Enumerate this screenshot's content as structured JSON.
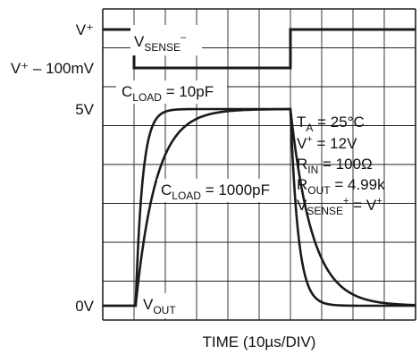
{
  "chart_data": {
    "type": "line",
    "xlabel": "TIME (10µs/DIV)",
    "x_divisions": 10,
    "y_levels": [
      {
        "label": "V⁺",
        "name": "vplus"
      },
      {
        "label": "V⁺ – 100mV",
        "name": "vplus-minus-100mv"
      },
      {
        "label": "5V",
        "name": "5v"
      },
      {
        "label": "0V",
        "name": "0v"
      }
    ],
    "series": [
      {
        "name": "VSENSE⁻",
        "label_main": "V",
        "label_sub": "SENSE",
        "label_sup": "–",
        "level_high": "V⁺",
        "level_low": "V⁺ – 100mV",
        "step_down_div": 1.0,
        "step_up_div": 6.0
      },
      {
        "name": "VOUT CLOAD = 10pF",
        "label_main": "C",
        "label_sub": "LOAD",
        "label_tail": " = 10pF",
        "rise_start_div": 1.05,
        "fall_start_div": 6.0,
        "tau_rise_div": 0.22,
        "tau_fall_div": 0.25
      },
      {
        "name": "VOUT CLOAD = 1000pF",
        "label_main": "C",
        "label_sub": "LOAD",
        "label_tail": " = 1000pF",
        "rise_start_div": 1.05,
        "fall_start_div": 6.0,
        "tau_rise_div": 0.65,
        "tau_fall_div": 0.7
      }
    ],
    "vout_label": {
      "main": "V",
      "sub": "OUT"
    },
    "conditions": [
      {
        "main": "T",
        "sub": "A",
        "tail": " = 25°C"
      },
      {
        "main": "V",
        "sup": "+",
        "tail": " = 12V"
      },
      {
        "main": "R",
        "sub": "IN",
        "tail": " = 100Ω"
      },
      {
        "main": "R",
        "sub": "OUT",
        "tail": " = 4.99k"
      },
      {
        "main": "V",
        "sub": "SENSE",
        "sup": "+",
        "tail": " = V",
        "sup2": "+"
      }
    ],
    "grid": true,
    "trace_color": "#1a1a1a",
    "grid_color": "#222222"
  }
}
